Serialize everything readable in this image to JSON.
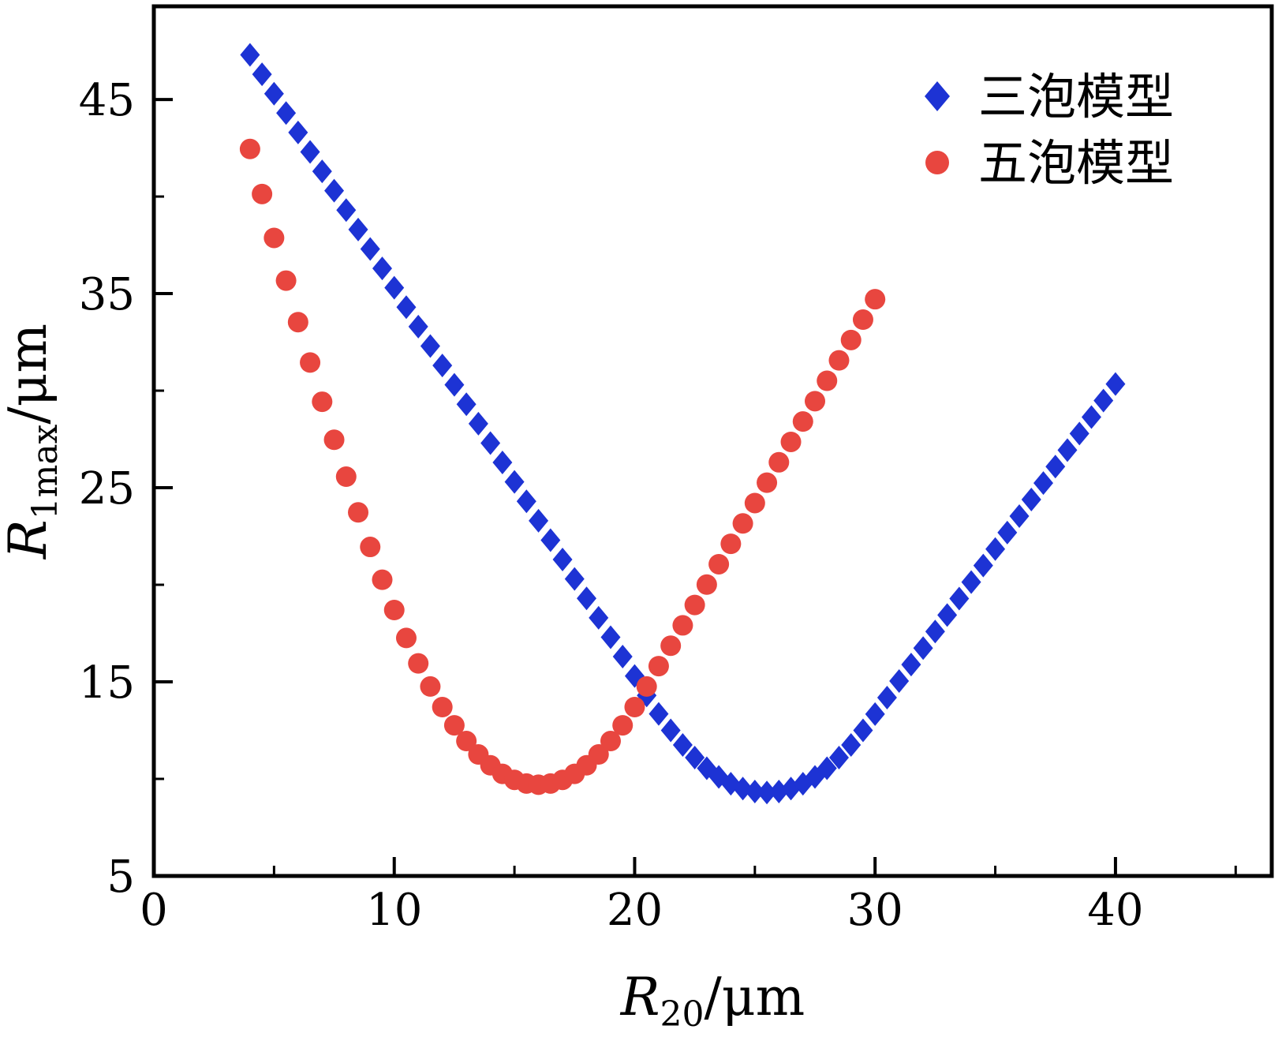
{
  "figure": {
    "background": "#ffffff",
    "frame_color": "#000000"
  },
  "chart_data": {
    "type": "scatter",
    "title": "",
    "xlabel": {
      "var": "R",
      "sub": "20",
      "unit": "/μm"
    },
    "ylabel": {
      "var": "R",
      "sub": "1max",
      "unit": "/μm"
    },
    "xlim": [
      0,
      46.5
    ],
    "ylim": [
      5,
      49.8
    ],
    "grid": false,
    "legend_position": "top-right",
    "xticks": {
      "major": [
        0,
        10,
        20,
        30,
        40
      ],
      "labels": [
        "0",
        "10",
        "20",
        "30",
        "40"
      ],
      "minor": [
        5,
        15,
        25,
        35,
        45
      ]
    },
    "yticks": {
      "major": [
        5,
        15,
        25,
        35,
        45
      ],
      "labels": [
        "5",
        "15",
        "25",
        "35",
        "45"
      ],
      "minor": [
        10,
        20,
        30,
        40
      ]
    },
    "series": [
      {
        "name": "三泡模型",
        "marker": "diamond",
        "color": "#1d33d4",
        "x": [
          4,
          4.5,
          5,
          5.5,
          6,
          6.5,
          7,
          7.5,
          8,
          8.5,
          9,
          9.5,
          10,
          10.5,
          11,
          11.5,
          12,
          12.5,
          13,
          13.5,
          14,
          14.5,
          15,
          15.5,
          16,
          16.5,
          17,
          17.5,
          18,
          18.5,
          19,
          19.5,
          20,
          20.5,
          21,
          21.5,
          22,
          22.5,
          23,
          23.5,
          24,
          24.5,
          25,
          25.5,
          26,
          26.5,
          27,
          27.5,
          28,
          28.5,
          29,
          29.5,
          30,
          30.5,
          31,
          31.5,
          32,
          32.5,
          33,
          33.5,
          34,
          34.5,
          35,
          35.5,
          36,
          36.5,
          37,
          37.5,
          38,
          38.5,
          39,
          39.5,
          40
        ],
        "y": [
          47.3,
          46.3,
          45.3,
          44.3,
          43.3,
          42.3,
          41.3,
          40.3,
          39.3,
          38.3,
          37.3,
          36.3,
          35.3,
          34.3,
          33.3,
          32.3,
          31.3,
          30.3,
          29.3,
          28.3,
          27.3,
          26.3,
          25.3,
          24.3,
          23.3,
          22.3,
          21.3,
          20.3,
          19.3,
          18.3,
          17.3,
          16.3,
          15.3,
          14.3,
          13.35,
          12.5,
          11.75,
          11.1,
          10.55,
          10.1,
          9.75,
          9.5,
          9.35,
          9.3,
          9.35,
          9.5,
          9.75,
          10.1,
          10.55,
          11.1,
          11.75,
          12.5,
          13.34,
          14.19,
          15.04,
          15.89,
          16.74,
          17.59,
          18.44,
          19.29,
          20.14,
          20.99,
          21.84,
          22.69,
          23.54,
          24.39,
          25.24,
          26.09,
          26.94,
          27.79,
          28.64,
          29.49,
          30.34
        ]
      },
      {
        "name": "五泡模型",
        "marker": "circle",
        "color": "#e8463f",
        "x": [
          4,
          4.5,
          5,
          5.5,
          6,
          6.5,
          7,
          7.5,
          8,
          8.5,
          9,
          9.5,
          10,
          10.5,
          11,
          11.5,
          12,
          12.5,
          13,
          13.5,
          14,
          14.5,
          15,
          15.5,
          16,
          16.5,
          17,
          17.5,
          18,
          18.5,
          19,
          19.5,
          20,
          20.5,
          21,
          21.5,
          22,
          22.5,
          23,
          23.5,
          24,
          24.5,
          25,
          25.5,
          26,
          26.5,
          27,
          27.5,
          28,
          28.5,
          29,
          29.5,
          30
        ],
        "y": [
          42.45,
          40.13,
          37.87,
          35.67,
          33.53,
          31.45,
          29.43,
          27.47,
          25.57,
          23.73,
          21.95,
          20.26,
          18.7,
          17.26,
          15.95,
          14.76,
          13.7,
          12.76,
          11.95,
          11.26,
          10.7,
          10.26,
          9.95,
          9.76,
          9.7,
          9.76,
          9.95,
          10.26,
          10.7,
          11.26,
          11.95,
          12.76,
          13.7,
          14.76,
          15.81,
          16.86,
          17.91,
          18.96,
          20.01,
          21.06,
          22.11,
          23.16,
          24.21,
          25.26,
          26.31,
          27.36,
          28.41,
          29.46,
          30.51,
          31.56,
          32.61,
          33.66,
          34.71
        ]
      }
    ]
  }
}
